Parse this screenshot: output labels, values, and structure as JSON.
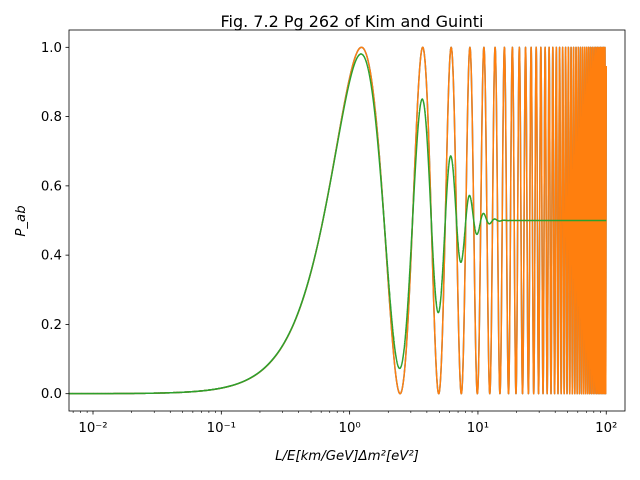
{
  "chart_data": {
    "type": "line",
    "title": "Fig. 7.2 Pg 262 of Kim and Guinti",
    "xlabel": "L/E[km/GeV]Δm²[eV²]",
    "ylabel": "P_ab",
    "xscale": "log",
    "xlim": [
      0.0065,
      140
    ],
    "ylim": [
      -0.05,
      1.05
    ],
    "x_ticks": [
      0.01,
      0.1,
      1,
      10,
      100
    ],
    "x_tick_labels": [
      "10⁻²",
      "10⁻¹",
      "10⁰",
      "10¹",
      "10²"
    ],
    "y_ticks": [
      0.0,
      0.2,
      0.4,
      0.6,
      0.8,
      1.0
    ],
    "y_tick_labels": [
      "0.0",
      "0.2",
      "0.4",
      "0.6",
      "0.8",
      "1.0"
    ],
    "x_range": [
      0.0065,
      100
    ],
    "series": [
      {
        "color": "#1f77b4",
        "formula": "sin²(1.27·x)",
        "description": "pure oscillation, no damping"
      },
      {
        "color": "#ff7f0e",
        "formula": "sin²(1.27·x)",
        "description": "pure oscillation, rapid oscillations up to x=100"
      },
      {
        "color": "#2ca02c",
        "formula": "0.5·(1 − cos(2.54·x)·exp(−(x/6.2)²))",
        "description": "damped oscillation converging to 0.5"
      }
    ],
    "grid": false,
    "legend": "none"
  }
}
